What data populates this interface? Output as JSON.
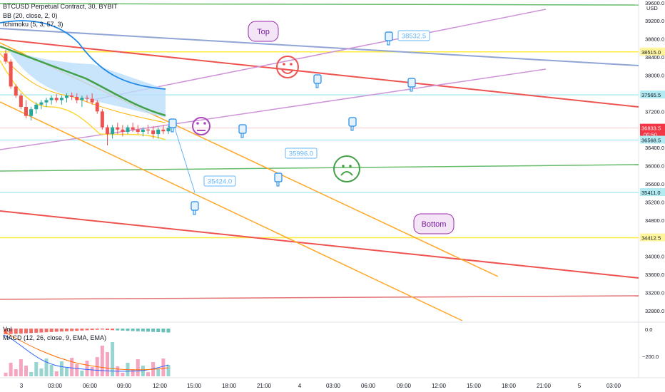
{
  "chart_data": {
    "type": "candlestick",
    "symbol_title": "BTCUSD Perpetual Contract, 30, BYBIT",
    "indicators": [
      "BB (20, close, 2, 0)",
      "Ichimoku (5, 3, 57, 3)"
    ],
    "currency": "USD",
    "price_axis": {
      "ticks": [
        39600,
        39200,
        38800,
        38400,
        38000,
        37600,
        37200,
        36800,
        36400,
        36000,
        35600,
        35200,
        34800,
        34400,
        34000,
        33600,
        33200,
        32800
      ],
      "ylim": [
        32580,
        39660
      ]
    },
    "time_axis": {
      "labels": [
        "3",
        "03:00",
        "06:00",
        "09:00",
        "12:00",
        "15:00",
        "18:00",
        "21:00",
        "4",
        "03:00",
        "06:00",
        "09:00",
        "12:00",
        "15:00",
        "18:00",
        "21:00",
        "5",
        "03:00"
      ]
    },
    "price_tags": [
      {
        "value": "38515.0",
        "color": "#fff59d"
      },
      {
        "value": "37565.5",
        "color": "#b2ebf2"
      },
      {
        "value": "36833.5",
        "sub": "00:50",
        "color": "#f23645"
      },
      {
        "value": "36568.5",
        "color": "#b2ebf2"
      },
      {
        "value": "35411.0",
        "color": "#b2ebf2"
      },
      {
        "value": "34412.5",
        "color": "#fff59d"
      }
    ],
    "horizontal_levels": [
      {
        "value": 38515.0,
        "color": "#ffeb3b"
      },
      {
        "value": 37565.5,
        "color": "#b2ebf2"
      },
      {
        "value": 36568.5,
        "color": "#b2ebf2"
      },
      {
        "value": 35411.0,
        "color": "#b2ebf2"
      },
      {
        "value": 34412.5,
        "color": "#ffeb3b"
      }
    ],
    "callouts": [
      {
        "text": "38532.5",
        "value": 38532.5
      },
      {
        "text": "35996.0",
        "value": 35996.0
      },
      {
        "text": "35424.0",
        "value": 35424.0
      }
    ],
    "notes": [
      "Top",
      "Bottom"
    ],
    "candles": [
      {
        "o": 38480,
        "h": 38560,
        "l": 38250,
        "c": 38300
      },
      {
        "o": 38300,
        "h": 38350,
        "l": 37700,
        "c": 37750
      },
      {
        "o": 37750,
        "h": 37800,
        "l": 37500,
        "c": 37550
      },
      {
        "o": 37550,
        "h": 37600,
        "l": 37250,
        "c": 37300
      },
      {
        "o": 37300,
        "h": 37450,
        "l": 37050,
        "c": 37100
      },
      {
        "o": 37100,
        "h": 37300,
        "l": 37000,
        "c": 37250
      },
      {
        "o": 37250,
        "h": 37400,
        "l": 37150,
        "c": 37350
      },
      {
        "o": 37350,
        "h": 37450,
        "l": 37250,
        "c": 37400
      },
      {
        "o": 37400,
        "h": 37500,
        "l": 37300,
        "c": 37450
      },
      {
        "o": 37450,
        "h": 37550,
        "l": 37350,
        "c": 37500
      },
      {
        "o": 37500,
        "h": 37580,
        "l": 37400,
        "c": 37450
      },
      {
        "o": 37450,
        "h": 37550,
        "l": 37350,
        "c": 37500
      },
      {
        "o": 37500,
        "h": 37600,
        "l": 37400,
        "c": 37550
      },
      {
        "o": 37550,
        "h": 37620,
        "l": 37450,
        "c": 37520
      },
      {
        "o": 37520,
        "h": 37600,
        "l": 37380,
        "c": 37450
      },
      {
        "o": 37450,
        "h": 37550,
        "l": 37300,
        "c": 37500
      },
      {
        "o": 37500,
        "h": 37560,
        "l": 37400,
        "c": 37480
      },
      {
        "o": 37480,
        "h": 37600,
        "l": 37350,
        "c": 37400
      },
      {
        "o": 37400,
        "h": 37450,
        "l": 37150,
        "c": 37200
      },
      {
        "o": 37200,
        "h": 37250,
        "l": 36800,
        "c": 36850
      },
      {
        "o": 36850,
        "h": 36900,
        "l": 36450,
        "c": 36700
      },
      {
        "o": 36700,
        "h": 36900,
        "l": 36600,
        "c": 36850
      },
      {
        "o": 36850,
        "h": 36950,
        "l": 36700,
        "c": 36800
      },
      {
        "o": 36800,
        "h": 36900,
        "l": 36650,
        "c": 36750
      },
      {
        "o": 36750,
        "h": 36900,
        "l": 36700,
        "c": 36850
      },
      {
        "o": 36850,
        "h": 36950,
        "l": 36750,
        "c": 36800
      },
      {
        "o": 36800,
        "h": 36900,
        "l": 36700,
        "c": 36750
      },
      {
        "o": 36750,
        "h": 36850,
        "l": 36650,
        "c": 36800
      },
      {
        "o": 36800,
        "h": 36900,
        "l": 36700,
        "c": 36780
      },
      {
        "o": 36780,
        "h": 36880,
        "l": 36600,
        "c": 36700
      },
      {
        "o": 36700,
        "h": 36850,
        "l": 36600,
        "c": 36800
      },
      {
        "o": 36800,
        "h": 36900,
        "l": 36700,
        "c": 36760
      },
      {
        "o": 36760,
        "h": 36880,
        "l": 36700,
        "c": 36833.5
      }
    ],
    "lower_pane": {
      "label_vol": "Vol",
      "label_macd": "MACD (12, 26, close, 9, EMA, EMA)",
      "ticks": [
        "0.0",
        "−200.0"
      ]
    }
  }
}
